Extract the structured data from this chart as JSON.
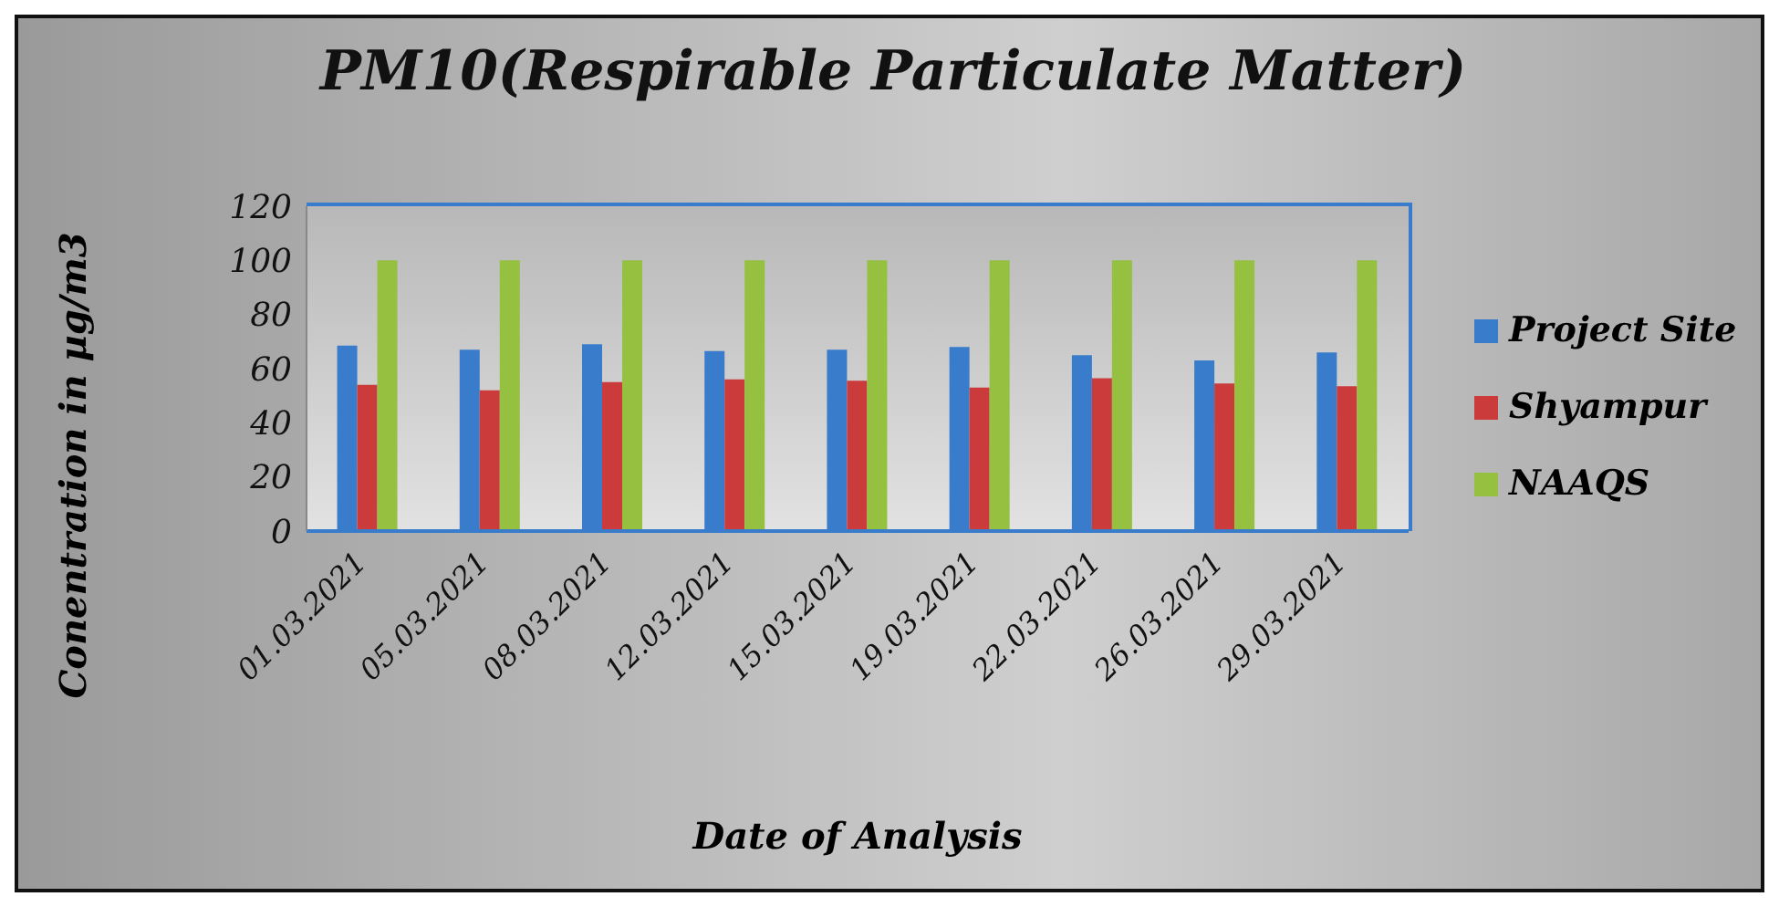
{
  "chart_data": {
    "type": "bar",
    "title": "PM10(Respirable Particulate Matter)",
    "xlabel": "Date of Analysis",
    "ylabel": "Conentration in µg/m3",
    "categories": [
      "01.03.2021",
      "05.03.2021",
      "08.03.2021",
      "12.03.2021",
      "15.03.2021",
      "19.03.2021",
      "22.03.2021",
      "26.03.2021",
      "29.03.2021"
    ],
    "series": [
      {
        "name": "Project Site",
        "color": "#3a7ccc",
        "values": [
          68.5,
          67,
          69,
          66.5,
          67,
          68,
          65,
          63,
          66
        ]
      },
      {
        "name": "Shyampur",
        "color": "#cc3b3b",
        "values": [
          54,
          52,
          55,
          56,
          55.5,
          53,
          56.5,
          54.5,
          53.5
        ]
      },
      {
        "name": "NAAQS",
        "color": "#95c040",
        "values": [
          100,
          100,
          100,
          100,
          100,
          100,
          100,
          100,
          100
        ]
      }
    ],
    "ylim": [
      0,
      120
    ],
    "yticks": [
      0,
      20,
      40,
      60,
      80,
      100,
      120
    ],
    "grid": false,
    "legend": "right"
  }
}
